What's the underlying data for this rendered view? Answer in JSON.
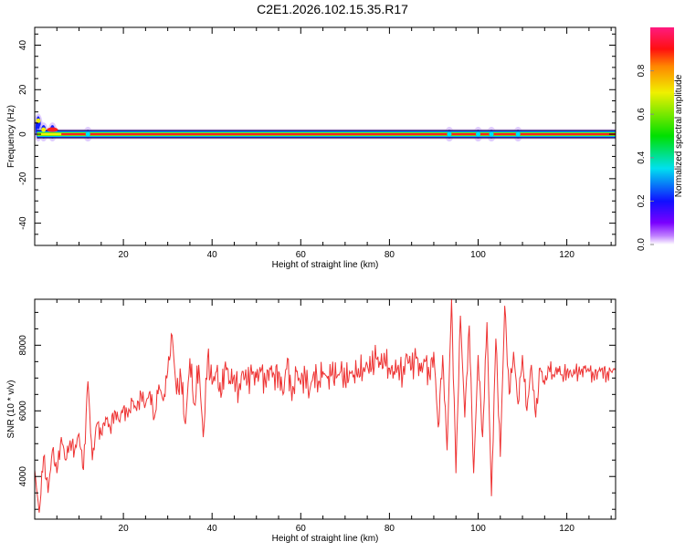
{
  "title": "C2E1.2026.102.15.35.R17",
  "chart_data": [
    {
      "type": "heatmap",
      "title": "C2E1.2026.102.15.35.R17",
      "xlabel": "Height of straight line (km)",
      "ylabel": "Frequency (Hz)",
      "xlim": [
        0,
        131
      ],
      "ylim": [
        -50,
        48
      ],
      "xticks": [
        "20",
        "40",
        "60",
        "80",
        "100",
        "120"
      ],
      "yticks": [
        "40",
        "20",
        "0",
        "-20",
        "-40"
      ],
      "colorbar": {
        "label": "Normalized spectral amplitude",
        "range": [
          0,
          1
        ],
        "ticks": [
          "0.0",
          "0.2",
          "0.4",
          "0.6",
          "0.8"
        ]
      },
      "ridge": {
        "frequency_hz": 0,
        "note_points": [
          {
            "km": 0.8,
            "hz": 6,
            "amp": 0.7
          },
          {
            "km": 2,
            "hz": 2,
            "amp": 0.7
          },
          {
            "km": 4,
            "hz": 2,
            "amp": 0.95
          },
          {
            "km": 12,
            "hz": 0,
            "amp": 0.6
          },
          {
            "km": 93.5,
            "hz": 0,
            "amp": 0.4
          },
          {
            "km": 100,
            "hz": 0,
            "amp": 0.5
          },
          {
            "km": 103,
            "hz": 0,
            "amp": 0.5
          },
          {
            "km": 109,
            "hz": 0,
            "amp": 0.5
          }
        ]
      }
    },
    {
      "type": "line",
      "xlabel": "Height of straight line (km)",
      "ylabel": "SNR (10 * v/v)",
      "xlim": [
        0,
        131
      ],
      "ylim": [
        2700,
        9400
      ],
      "xticks": [
        "20",
        "40",
        "60",
        "80",
        "100",
        "120"
      ],
      "yticks": [
        "8000",
        "6000",
        "4000"
      ],
      "color": "#ee3333",
      "x_start": 0,
      "x_step": 1,
      "values": [
        4200,
        2900,
        4600,
        3500,
        4800,
        4100,
        5200,
        4500,
        5100,
        4800,
        5300,
        4200,
        6900,
        4500,
        5600,
        5300,
        5800,
        5500,
        6000,
        5700,
        6100,
        5800,
        6300,
        6000,
        6500,
        6200,
        6600,
        5800,
        6800,
        6300,
        7200,
        8300,
        6500,
        7000,
        5600,
        7600,
        6200,
        7400,
        5200,
        7600,
        6800,
        7200,
        6400,
        7500,
        6900,
        7100,
        6600,
        7200,
        6900,
        7100,
        7000,
        7200,
        6900,
        7300,
        7100,
        7200,
        6500,
        7600,
        6300,
        7200,
        6800,
        7100,
        6600,
        7200,
        6900,
        7200,
        7000,
        7100,
        7000,
        7200,
        6900,
        7200,
        7100,
        7300,
        7200,
        7400,
        7300,
        7600,
        7400,
        7500,
        7300,
        7200,
        7400,
        7100,
        7700,
        7300,
        7600,
        7200,
        7500,
        7100,
        7800,
        5500,
        7700,
        4800,
        9400,
        4100,
        8900,
        5800,
        8600,
        4100,
        7700,
        5200,
        8700,
        3400,
        8200,
        4600,
        9200,
        6500,
        7800,
        6200,
        7700,
        6000,
        7400,
        5800,
        7300,
        6800,
        7300,
        7100,
        7300,
        7100,
        7200,
        7100,
        7200,
        7100,
        7300,
        7200,
        7100,
        7200,
        7300,
        7100,
        7200,
        7300
      ]
    }
  ]
}
